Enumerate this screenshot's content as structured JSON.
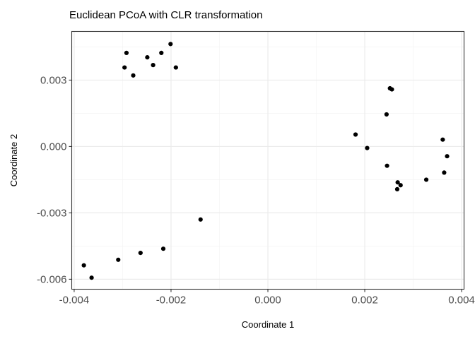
{
  "chart_data": {
    "type": "scatter",
    "title": "Euclidean PCoA with CLR transformation",
    "xlabel": "Coordinate 1",
    "ylabel": "Coordinate 2",
    "xlim": [
      -0.00405,
      0.00405
    ],
    "ylim": [
      -0.00645,
      0.0052
    ],
    "grid": true,
    "x_ticks": [
      -0.004,
      -0.002,
      0.0,
      0.002,
      0.004
    ],
    "x_tick_labels": [
      "-0.004",
      "-0.002",
      "0.000",
      "0.002",
      "0.004"
    ],
    "y_ticks": [
      -0.006,
      -0.003,
      0.0,
      0.003
    ],
    "y_tick_labels": [
      "-0.006",
      "-0.003",
      "0.000",
      "0.003"
    ],
    "points": [
      {
        "x": -0.00292,
        "y": 0.00423
      },
      {
        "x": -0.00296,
        "y": 0.00357
      },
      {
        "x": -0.00278,
        "y": 0.00321
      },
      {
        "x": -0.00249,
        "y": 0.00403
      },
      {
        "x": -0.00237,
        "y": 0.00368
      },
      {
        "x": -0.0022,
        "y": 0.00423
      },
      {
        "x": -0.00201,
        "y": 0.00463
      },
      {
        "x": -0.0019,
        "y": 0.00357
      },
      {
        "x": -0.00139,
        "y": -0.0033
      },
      {
        "x": -0.0038,
        "y": -0.00537
      },
      {
        "x": -0.00364,
        "y": -0.00593
      },
      {
        "x": -0.00309,
        "y": -0.00512
      },
      {
        "x": -0.00263,
        "y": -0.00481
      },
      {
        "x": -0.00216,
        "y": -0.00462
      },
      {
        "x": 0.00181,
        "y": 0.00054
      },
      {
        "x": 0.00205,
        "y": -7e-05
      },
      {
        "x": 0.00245,
        "y": 0.00145
      },
      {
        "x": 0.00252,
        "y": 0.00263
      },
      {
        "x": 0.00256,
        "y": 0.00258
      },
      {
        "x": 0.00246,
        "y": -0.00087
      },
      {
        "x": 0.00268,
        "y": -0.00162
      },
      {
        "x": 0.00274,
        "y": -0.00175
      },
      {
        "x": 0.00267,
        "y": -0.00193
      },
      {
        "x": 0.00327,
        "y": -0.0015
      },
      {
        "x": 0.00361,
        "y": 0.00031
      },
      {
        "x": 0.00364,
        "y": -0.00118
      },
      {
        "x": 0.0037,
        "y": -0.00044
      }
    ]
  },
  "colors": {
    "point": "#000000",
    "grid_major": "#ebebeb",
    "grid_minor": "#f2f2f2",
    "panel_border": "#333333",
    "tick_text": "#4d4d4d"
  }
}
